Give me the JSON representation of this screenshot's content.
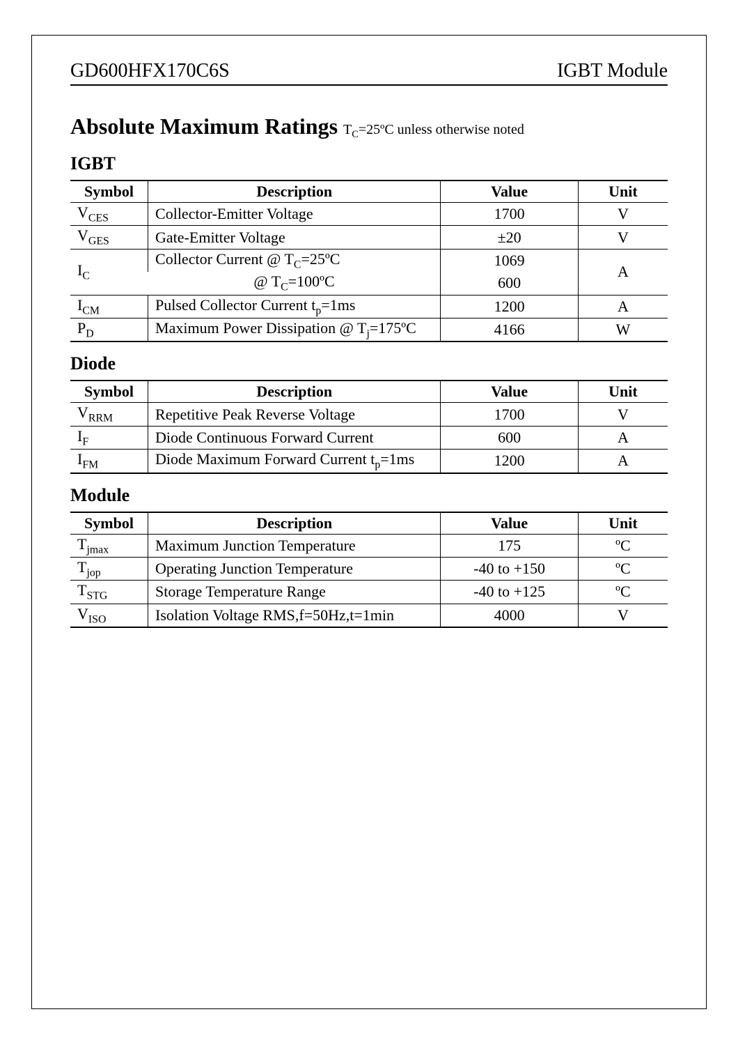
{
  "header": {
    "part_number": "GD600HFX170C6S",
    "module_type": "IGBT Module"
  },
  "title": {
    "main": "Absolute Maximum Ratings",
    "sub_pre": " T",
    "sub_c": "C",
    "sub_post": "=25ºC unless otherwise noted"
  },
  "sections": {
    "igbt": {
      "heading": "IGBT",
      "columns": [
        "Symbol",
        "Description",
        "Value",
        "Unit"
      ],
      "rows": [
        {
          "sym_pre": "V",
          "sym_sub": "CES",
          "desc": "Collector-Emitter Voltage",
          "value": "1700",
          "unit": "V"
        },
        {
          "sym_pre": "V",
          "sym_sub": "GES",
          "desc": "Gate-Emitter Voltage",
          "value": "±20",
          "unit": "V"
        },
        {
          "sym_pre": "I",
          "sym_sub": "C",
          "desc_pre": "Collector Current ",
          "desc_at": "@ T",
          "desc_sub": "C",
          "desc_post": "=25ºC",
          "value": "1069",
          "unit": "A",
          "rowspan": 2
        },
        {
          "desc_at": "@ T",
          "desc_sub": "C",
          "desc_post": "=100ºC",
          "value": "600"
        },
        {
          "sym_pre": "I",
          "sym_sub": "CM",
          "desc_pre": "Pulsed Collector Current  t",
          "desc_sub": "p",
          "desc_post": "=1ms",
          "value": "1200",
          "unit": "A"
        },
        {
          "sym_pre": "P",
          "sym_sub": "D",
          "desc_pre": "Maximum Power Dissipation  @ T",
          "desc_sub": "j",
          "desc_post": "=175ºC",
          "value": "4166",
          "unit": "W"
        }
      ]
    },
    "diode": {
      "heading": "Diode",
      "columns": [
        "Symbol",
        "Description",
        "Value",
        "Unit"
      ],
      "rows": [
        {
          "sym_pre": "V",
          "sym_sub": "RRM",
          "desc": "Repetitive Peak Reverse Voltage",
          "value": "1700",
          "unit": "V"
        },
        {
          "sym_pre": "I",
          "sym_sub": "F",
          "desc": "Diode Continuous Forward Current",
          "value": "600",
          "unit": "A"
        },
        {
          "sym_pre": "I",
          "sym_sub": "FM",
          "desc_pre": "Diode Maximum Forward Current  t",
          "desc_sub": "p",
          "desc_post": "=1ms",
          "value": "1200",
          "unit": "A"
        }
      ]
    },
    "module": {
      "heading": "Module",
      "columns": [
        "Symbol",
        "Description",
        "Value",
        "Unit"
      ],
      "rows": [
        {
          "sym_pre": "T",
          "sym_sub": "jmax",
          "desc": "Maximum Junction Temperature",
          "value": "175",
          "unit": "ºC"
        },
        {
          "sym_pre": "T",
          "sym_sub": "jop",
          "desc": "Operating Junction Temperature",
          "value": "-40 to +150",
          "unit": "ºC"
        },
        {
          "sym_pre": "T",
          "sym_sub": "STG",
          "desc": "Storage Temperature Range",
          "value": "-40 to +125",
          "unit": "ºC"
        },
        {
          "sym_pre": "V",
          "sym_sub": "ISO",
          "desc": "Isolation Voltage  RMS,f=50Hz,t=1min",
          "value": "4000",
          "unit": "V"
        }
      ]
    }
  }
}
